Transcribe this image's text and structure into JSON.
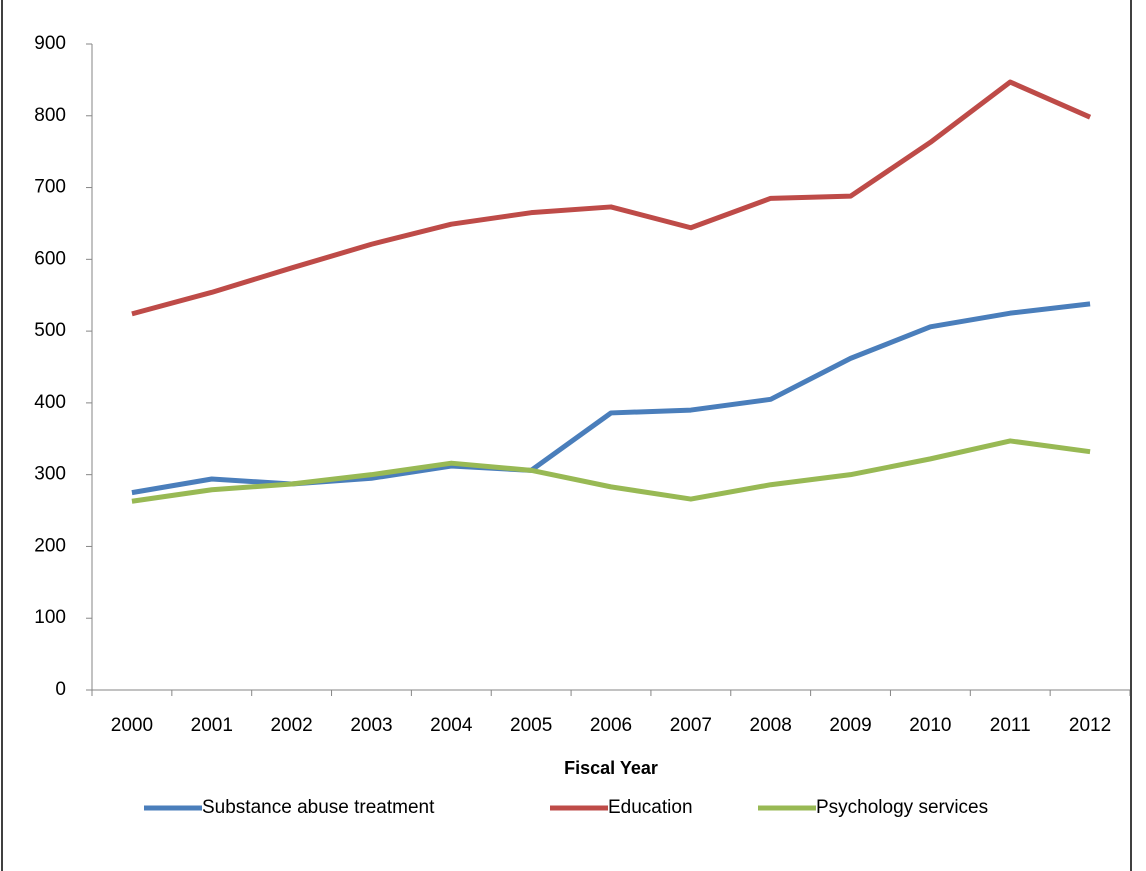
{
  "chart_data": {
    "type": "line",
    "x_label": "Fiscal Year",
    "categories": [
      "2000",
      "2001",
      "2002",
      "2003",
      "2004",
      "2005",
      "2006",
      "2007",
      "2008",
      "2009",
      "2010",
      "2011",
      "2012"
    ],
    "series": [
      {
        "name": "Substance abuse treatment",
        "color": "#4a7ebb",
        "values": [
          275,
          294,
          287,
          295,
          312,
          306,
          386,
          390,
          405,
          462,
          506,
          525,
          538
        ]
      },
      {
        "name": "Education",
        "color": "#be4b48",
        "values": [
          524,
          554,
          588,
          621,
          649,
          665,
          673,
          644,
          685,
          688,
          763,
          847,
          798
        ]
      },
      {
        "name": "Psychology services",
        "color": "#98b954",
        "values": [
          263,
          279,
          287,
          300,
          316,
          306,
          283,
          266,
          286,
          300,
          322,
          347,
          332
        ]
      }
    ],
    "ylim": [
      0,
      900
    ],
    "yticks": [
      0,
      100,
      200,
      300,
      400,
      500,
      600,
      700,
      800,
      900
    ],
    "legend": "bottom"
  }
}
